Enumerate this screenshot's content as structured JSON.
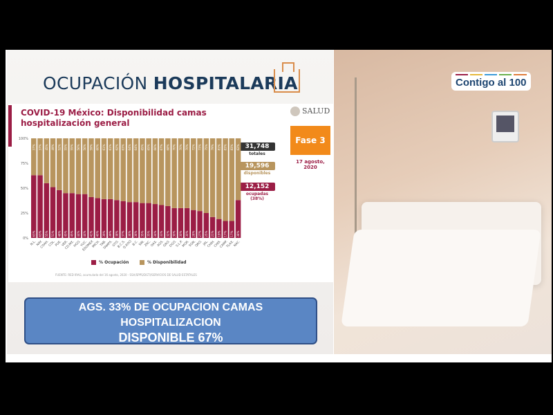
{
  "slide": {
    "title_light": "OCUPACIÓN",
    "title_bold": "HOSPITALARIA",
    "subtitle": "COVID-19 México: Disponibilidad camas hospitalización general",
    "brand": "SALUD",
    "phase": "Fase 3",
    "date": "17 agosto, 2020",
    "stats": {
      "total": "31,748",
      "total_label": "totales",
      "available": "19,596",
      "available_label": "disponibles",
      "occupied": "12,152",
      "occupied_label": "ocupadas (38%)"
    },
    "source": "FUENTE: RED IRAG, acumulado del 16 agosto, 2020 - SSA/SPPS/DGTI/SERVICIOS DE SALUD ESTATALES"
  },
  "banner": {
    "line1": "AGS. 33% DE OCUPACION CAMAS",
    "line2": "HOSPITALIZACION",
    "line3": "DISPONIBLE 67%"
  },
  "logo": {
    "text": "Contigo al 100"
  },
  "colors": {
    "occupation": "#9b1d45",
    "availability": "#b8955e",
    "phase": "#f28a1a",
    "banner": "#5a86c4"
  },
  "chart_data": {
    "type": "bar",
    "stacked": true,
    "categories": [
      "N.L.",
      "NAY.",
      "COAH.",
      "COL.",
      "PUE.",
      "VER.",
      "CD.MX.",
      "HGO.",
      "YUC.",
      "EDOMEX",
      "MICH.",
      "TAB.",
      "TAMPS.",
      "GTO.",
      "B.C.S.",
      "Q.ROO",
      "B.C.",
      "SIN.",
      "ZAC.",
      "OAX.",
      "AGS.",
      "GRO.",
      "DGO.",
      "S.L.P.",
      "MOR.",
      "SON.",
      "QRO.",
      "JAL.",
      "CHIH.",
      "CHIS.",
      "CAMP.",
      "TLAX.",
      "NAC."
    ],
    "series": [
      {
        "name": "% Ocupación",
        "values": [
          63,
          63,
          55,
          51,
          48,
          45,
          45,
          44,
          44,
          41,
          40,
          39,
          39,
          38,
          37,
          36,
          36,
          35,
          35,
          34,
          33,
          32,
          30,
          30,
          30,
          28,
          27,
          25,
          21,
          19,
          17,
          17,
          38
        ]
      },
      {
        "name": "% Disponibilidad",
        "values": [
          37,
          37,
          45,
          49,
          52,
          55,
          55,
          56,
          56,
          59,
          60,
          61,
          61,
          62,
          63,
          64,
          64,
          65,
          65,
          66,
          67,
          68,
          70,
          70,
          70,
          72,
          73,
          75,
          79,
          81,
          83,
          83,
          62
        ]
      }
    ],
    "yticks": [
      "0%",
      "25%",
      "50%",
      "75%",
      "100%"
    ],
    "ylim": [
      0,
      100
    ],
    "legend": "bottom"
  }
}
